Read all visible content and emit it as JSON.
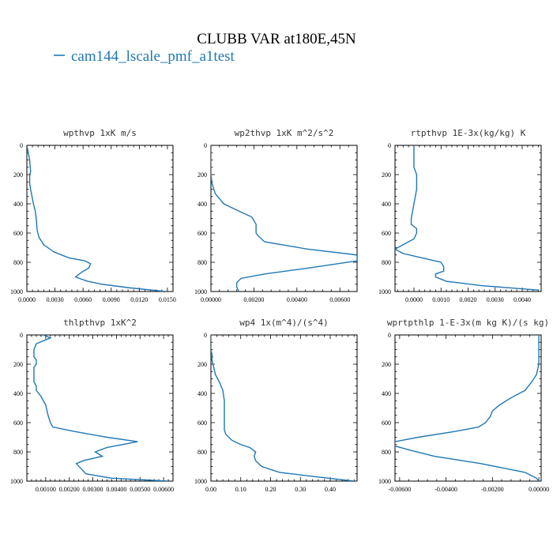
{
  "figure": {
    "title": "CLUBB VAR at180E,45N",
    "legend": "cam144_lscale_pmf_a1test",
    "line_color": "#1f77b4"
  },
  "chart_data": [
    {
      "type": "line",
      "title": "wpthvp  1xK m/s",
      "xlim": [
        0.0,
        0.0156
      ],
      "ylim": [
        1000,
        0
      ],
      "x_ticks": [
        0.0,
        0.003,
        0.006,
        0.009,
        0.012,
        0.015
      ],
      "x_tick_labels": [
        "0.0000",
        "0.0030",
        "0.0060",
        "0.0090",
        "0.0120",
        "0.0150"
      ],
      "y_ticks": [
        0,
        200,
        400,
        600,
        800,
        1000
      ],
      "y_tick_labels": [
        "0",
        "200",
        "400",
        "600",
        "800",
        "1000"
      ],
      "series": [
        {
          "name": "cam144_lscale_pmf_a1test",
          "x": [
            0.0,
            0.0003,
            0.0004,
            0.0003,
            0.0003,
            0.0004,
            0.0007,
            0.0009,
            0.001,
            0.0011,
            0.0013,
            0.0018,
            0.0029,
            0.0045,
            0.0062,
            0.0068,
            0.0066,
            0.0058,
            0.0052,
            0.0056,
            0.0065,
            0.008,
            0.011,
            0.0148
          ],
          "y": [
            0,
            100,
            180,
            200,
            260,
            300,
            400,
            450,
            500,
            580,
            630,
            680,
            730,
            770,
            790,
            810,
            840,
            870,
            900,
            910,
            930,
            950,
            975,
            1000
          ]
        }
      ]
    },
    {
      "type": "line",
      "title": "wp2thvp  1xK m^2/s^2",
      "xlim": [
        0.0,
        0.0068
      ],
      "ylim": [
        1000,
        0
      ],
      "x_ticks": [
        0.0,
        0.002,
        0.004,
        0.006
      ],
      "x_tick_labels": [
        "0.00000",
        "0.00200",
        "0.00400",
        "0.00600"
      ],
      "y_ticks": [
        0,
        200,
        400,
        600,
        800,
        1000
      ],
      "y_tick_labels": [
        "0",
        "200",
        "400",
        "600",
        "800",
        "1000"
      ],
      "series": [
        {
          "name": "cam144_lscale_pmf_a1test",
          "x": [
            0.0,
            0.0,
            5e-05,
            0.0002,
            0.0006,
            0.0013,
            0.0019,
            0.0021,
            0.0021,
            0.0022,
            0.0025,
            0.0045,
            0.0068,
            0.0068,
            0.0045,
            0.0025,
            0.0014,
            0.0012,
            0.0012,
            0.0013
          ],
          "y": [
            0,
            200,
            260,
            330,
            400,
            450,
            490,
            540,
            600,
            620,
            660,
            710,
            750,
            790,
            840,
            880,
            910,
            940,
            970,
            1000
          ]
        }
      ]
    },
    {
      "type": "line",
      "title": "rtpthvp  1E-3x(kg/kg) K",
      "xlim": [
        -0.0007,
        0.0047
      ],
      "ylim": [
        1000,
        0
      ],
      "x_ticks": [
        0.0,
        0.001,
        0.002,
        0.003,
        0.004
      ],
      "x_tick_labels": [
        "0.0000",
        "0.0010",
        "0.0020",
        "0.0030",
        "0.0040"
      ],
      "y_ticks": [
        0,
        200,
        400,
        600,
        800,
        1000
      ],
      "y_tick_labels": [
        "0",
        "200",
        "400",
        "600",
        "800",
        "1000"
      ],
      "series": [
        {
          "name": "cam144_lscale_pmf_a1test",
          "x": [
            0.0,
            0.0,
            0.0001,
            0.0001,
            0.0,
            -0.0001,
            -0.0001,
            0.0001,
            0.0001,
            0.0,
            -0.0004,
            -0.0007,
            -0.0004,
            0.0003,
            0.001,
            0.0011,
            0.0011,
            0.0008,
            0.0008,
            0.0012,
            0.0025,
            0.0046
          ],
          "y": [
            0,
            150,
            200,
            300,
            400,
            500,
            540,
            570,
            600,
            640,
            680,
            710,
            740,
            770,
            800,
            830,
            860,
            880,
            900,
            930,
            960,
            990
          ]
        }
      ]
    },
    {
      "type": "line",
      "title": "thlpthvp  1xK^2",
      "xlim": [
        0.0002,
        0.0064
      ],
      "ylim": [
        1000,
        0
      ],
      "x_ticks": [
        0.001,
        0.002,
        0.003,
        0.004,
        0.005,
        0.006
      ],
      "x_tick_labels": [
        "0.00100",
        "0.00200",
        "0.00300",
        "0.00400",
        "0.00500",
        "0.00600"
      ],
      "y_ticks": [
        0,
        200,
        400,
        600,
        800,
        1000
      ],
      "y_tick_labels": [
        "0",
        "200",
        "400",
        "600",
        "800",
        "1000"
      ],
      "series": [
        {
          "name": "cam144_lscale_pmf_a1test",
          "x": [
            0.0009,
            0.0012,
            0.0006,
            0.0005,
            0.0005,
            0.0006,
            0.0006,
            0.0005,
            0.0005,
            0.0005,
            0.0006,
            0.0006,
            0.0008,
            0.001,
            0.0011,
            0.0012,
            0.0013,
            0.0022,
            0.0036,
            0.0049,
            0.0036,
            0.0031,
            0.0034,
            0.0026,
            0.0023,
            0.0027,
            0.0038,
            0.0062
          ],
          "y": [
            0,
            20,
            60,
            100,
            150,
            170,
            200,
            220,
            280,
            320,
            350,
            380,
            420,
            480,
            550,
            600,
            630,
            660,
            700,
            730,
            770,
            800,
            830,
            860,
            880,
            950,
            980,
            1000
          ]
        }
      ]
    },
    {
      "type": "line",
      "title": "wp4  1x(m^4)/(s^4)",
      "xlim": [
        0.0,
        0.49
      ],
      "ylim": [
        1000,
        0
      ],
      "x_ticks": [
        0.0,
        0.1,
        0.2,
        0.3,
        0.4
      ],
      "x_tick_labels": [
        "0.00",
        "0.10",
        "0.20",
        "0.30",
        "0.40"
      ],
      "y_ticks": [
        0,
        200,
        400,
        600,
        800,
        1000
      ],
      "y_tick_labels": [
        "0",
        "200",
        "400",
        "600",
        "800",
        "1000"
      ],
      "series": [
        {
          "name": "cam144_lscale_pmf_a1test",
          "x": [
            0.0,
            0.0,
            0.005,
            0.003,
            0.008,
            0.015,
            0.03,
            0.04,
            0.045,
            0.045,
            0.045,
            0.05,
            0.07,
            0.1,
            0.13,
            0.15,
            0.145,
            0.15,
            0.17,
            0.23,
            0.35,
            0.48
          ],
          "y": [
            0,
            100,
            150,
            170,
            210,
            270,
            330,
            380,
            450,
            550,
            650,
            680,
            720,
            750,
            770,
            800,
            830,
            860,
            900,
            940,
            970,
            1000
          ]
        }
      ]
    },
    {
      "type": "line",
      "title": "wprtpthlp  1-E-3x(m kg K)/(s kg)",
      "xlim": [
        -0.0062,
        0.0001
      ],
      "ylim": [
        1000,
        0
      ],
      "x_ticks": [
        -0.006,
        -0.004,
        -0.002,
        0.0
      ],
      "x_tick_labels": [
        "-0.00600",
        "-0.00400",
        "-0.00200",
        "0.00000"
      ],
      "y_ticks": [
        0,
        200,
        400,
        600,
        800,
        1000
      ],
      "y_tick_labels": [
        "0",
        "200",
        "400",
        "600",
        "800",
        "1000"
      ],
      "series": [
        {
          "name": "cam144_lscale_pmf_a1test",
          "x": [
            0.0,
            0.0,
            -0.0001,
            -0.0003,
            -0.0006,
            -0.0012,
            -0.0017,
            -0.002,
            -0.0021,
            -0.0023,
            -0.0026,
            -0.0036,
            -0.0052,
            -0.0062,
            -0.0062,
            -0.0055,
            -0.0045,
            -0.0025,
            -0.0006,
            -0.0001,
            0.0
          ],
          "y": [
            0,
            200,
            270,
            320,
            380,
            430,
            480,
            520,
            560,
            600,
            630,
            660,
            700,
            730,
            760,
            790,
            830,
            880,
            940,
            980,
            1000
          ]
        }
      ]
    }
  ]
}
